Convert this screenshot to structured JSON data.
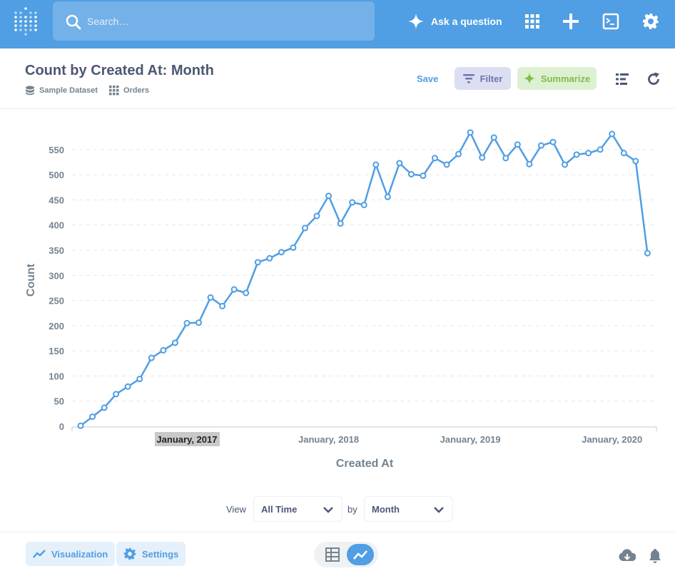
{
  "search": {
    "placeholder": "Search…"
  },
  "nav": {
    "ask_label": "Ask a question"
  },
  "question": {
    "title": "Count by Created At: Month",
    "database": "Sample Dataset",
    "table": "Orders",
    "save_label": "Save",
    "filter_label": "Filter",
    "summarize_label": "Summarize"
  },
  "colors": {
    "brand": "#509ee3",
    "filter": "#7172ad",
    "summarize": "#84bb4c"
  },
  "chart_data": {
    "type": "line",
    "title": "",
    "xlabel": "Created At",
    "ylabel": "Count",
    "ylim": [
      0,
      550
    ],
    "yticks": [
      0,
      50,
      100,
      150,
      200,
      250,
      300,
      350,
      400,
      450,
      500,
      550
    ],
    "xtick_labels": [
      "January, 2017",
      "January, 2018",
      "January, 2019",
      "January, 2020"
    ],
    "highlighted_xtick": "January, 2017",
    "x_start": "2016-04",
    "grid": true,
    "series": [
      {
        "values": [
          1,
          19,
          37,
          64,
          79,
          94,
          136,
          151,
          166,
          205,
          206,
          256,
          239,
          272,
          265,
          326,
          334,
          346,
          355,
          394,
          418,
          458,
          403,
          445,
          440,
          520,
          456,
          523,
          501,
          498,
          533,
          520,
          541,
          584,
          534,
          574,
          533,
          560,
          521,
          558,
          565,
          520,
          540,
          543,
          550,
          581,
          543,
          527,
          344
        ]
      }
    ]
  },
  "controls": {
    "view_label": "View",
    "view_value": "All Time",
    "by_label": "by",
    "by_value": "Month"
  },
  "footer": {
    "visualization_label": "Visualization",
    "settings_label": "Settings"
  }
}
